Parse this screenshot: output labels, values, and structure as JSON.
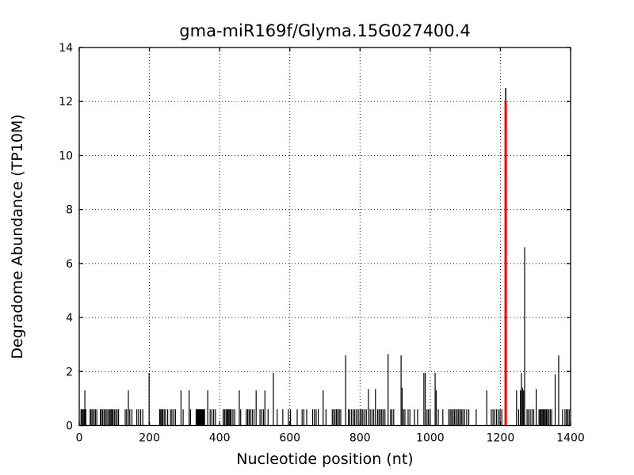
{
  "chart_data": {
    "type": "bar",
    "title": "gma-miR169f/Glyma.15G027400.4",
    "xlabel": "Nucleotide position (nt)",
    "ylabel": "Degradome Abundance (TP10M)",
    "xlim": [
      0,
      1400
    ],
    "ylim": [
      0,
      14
    ],
    "xticks": [
      0,
      200,
      400,
      600,
      800,
      1000,
      1200,
      1400
    ],
    "yticks": [
      0,
      2,
      4,
      6,
      8,
      10,
      12,
      14
    ],
    "grid": "dotted",
    "background_color": "#ffffff",
    "bar_color": "#000000",
    "highlight_color": "#ff0000",
    "highlight": {
      "x": 1215,
      "height": 12.0
    },
    "peak": {
      "x": 1215,
      "height": 12.5
    },
    "spikes": [
      [
        5,
        0.6
      ],
      [
        8,
        0.6
      ],
      [
        11,
        0.6
      ],
      [
        14,
        0.6
      ],
      [
        16,
        1.3
      ],
      [
        19,
        0.6
      ],
      [
        31,
        0.6
      ],
      [
        34,
        0.6
      ],
      [
        38,
        0.6
      ],
      [
        42,
        0.6
      ],
      [
        46,
        0.6
      ],
      [
        50,
        0.6
      ],
      [
        60,
        0.6
      ],
      [
        63,
        0.6
      ],
      [
        67,
        0.6
      ],
      [
        71,
        0.6
      ],
      [
        75,
        0.6
      ],
      [
        79,
        0.6
      ],
      [
        83,
        0.6
      ],
      [
        87,
        0.6
      ],
      [
        90,
        0.6
      ],
      [
        93,
        0.6
      ],
      [
        96,
        0.6
      ],
      [
        100,
        0.6
      ],
      [
        104,
        0.6
      ],
      [
        108,
        0.6
      ],
      [
        112,
        0.6
      ],
      [
        131,
        0.6
      ],
      [
        135,
        0.6
      ],
      [
        140,
        1.3
      ],
      [
        144,
        0.6
      ],
      [
        150,
        0.6
      ],
      [
        164,
        0.6
      ],
      [
        169,
        0.6
      ],
      [
        175,
        0.6
      ],
      [
        181,
        0.6
      ],
      [
        199,
        1.95
      ],
      [
        229,
        0.6
      ],
      [
        232,
        0.6
      ],
      [
        235,
        0.6
      ],
      [
        238,
        0.6
      ],
      [
        242,
        0.6
      ],
      [
        246,
        0.6
      ],
      [
        252,
        0.6
      ],
      [
        260,
        0.6
      ],
      [
        264,
        0.6
      ],
      [
        269,
        0.6
      ],
      [
        274,
        0.6
      ],
      [
        290,
        1.3
      ],
      [
        296,
        0.6
      ],
      [
        313,
        1.3
      ],
      [
        317,
        0.6
      ],
      [
        333,
        0.6
      ],
      [
        335,
        0.6
      ],
      [
        337,
        0.6
      ],
      [
        339,
        0.6
      ],
      [
        341,
        0.6
      ],
      [
        343,
        0.6
      ],
      [
        345,
        0.6
      ],
      [
        347,
        0.6
      ],
      [
        349,
        0.6
      ],
      [
        351,
        0.6
      ],
      [
        353,
        0.6
      ],
      [
        355,
        0.6
      ],
      [
        357,
        0.6
      ],
      [
        366,
        1.3
      ],
      [
        373,
        0.6
      ],
      [
        378,
        0.6
      ],
      [
        383,
        0.6
      ],
      [
        388,
        0.6
      ],
      [
        410,
        0.6
      ],
      [
        414,
        0.6
      ],
      [
        418,
        0.6
      ],
      [
        421,
        0.6
      ],
      [
        424,
        0.6
      ],
      [
        427,
        0.6
      ],
      [
        430,
        0.6
      ],
      [
        433,
        0.6
      ],
      [
        438,
        0.6
      ],
      [
        443,
        0.6
      ],
      [
        456,
        1.3
      ],
      [
        460,
        0.6
      ],
      [
        476,
        0.6
      ],
      [
        480,
        0.6
      ],
      [
        484,
        0.6
      ],
      [
        488,
        0.6
      ],
      [
        493,
        0.6
      ],
      [
        498,
        0.6
      ],
      [
        504,
        1.3
      ],
      [
        515,
        0.6
      ],
      [
        520,
        0.6
      ],
      [
        525,
        0.6
      ],
      [
        529,
        1.3
      ],
      [
        538,
        0.6
      ],
      [
        553,
        1.95
      ],
      [
        564,
        0.6
      ],
      [
        580,
        0.6
      ],
      [
        596,
        0.6
      ],
      [
        602,
        0.6
      ],
      [
        621,
        0.6
      ],
      [
        635,
        0.6
      ],
      [
        640,
        0.6
      ],
      [
        648,
        0.6
      ],
      [
        665,
        0.6
      ],
      [
        670,
        0.6
      ],
      [
        675,
        0.6
      ],
      [
        681,
        0.6
      ],
      [
        695,
        1.3
      ],
      [
        703,
        0.6
      ],
      [
        721,
        0.6
      ],
      [
        725,
        0.6
      ],
      [
        729,
        0.6
      ],
      [
        733,
        0.6
      ],
      [
        737,
        0.6
      ],
      [
        741,
        0.6
      ],
      [
        745,
        0.6
      ],
      [
        759,
        2.6
      ],
      [
        767,
        0.6
      ],
      [
        771,
        0.6
      ],
      [
        776,
        0.6
      ],
      [
        781,
        0.6
      ],
      [
        785,
        0.6
      ],
      [
        790,
        0.6
      ],
      [
        795,
        0.6
      ],
      [
        800,
        0.6
      ],
      [
        804,
        0.6
      ],
      [
        808,
        0.6
      ],
      [
        813,
        0.6
      ],
      [
        818,
        0.6
      ],
      [
        824,
        1.35
      ],
      [
        829,
        0.6
      ],
      [
        834,
        0.6
      ],
      [
        839,
        0.6
      ],
      [
        844,
        1.35
      ],
      [
        850,
        0.6
      ],
      [
        854,
        0.6
      ],
      [
        858,
        0.6
      ],
      [
        862,
        0.6
      ],
      [
        866,
        0.6
      ],
      [
        871,
        0.6
      ],
      [
        880,
        2.65
      ],
      [
        887,
        0.6
      ],
      [
        891,
        0.6
      ],
      [
        896,
        0.6
      ],
      [
        917,
        2.6
      ],
      [
        920,
        1.4
      ],
      [
        924,
        0.6
      ],
      [
        928,
        0.6
      ],
      [
        937,
        0.6
      ],
      [
        942,
        0.6
      ],
      [
        955,
        0.6
      ],
      [
        964,
        0.6
      ],
      [
        982,
        1.95
      ],
      [
        986,
        1.95
      ],
      [
        991,
        0.6
      ],
      [
        995,
        0.6
      ],
      [
        1000,
        0.6
      ],
      [
        1014,
        1.95
      ],
      [
        1017,
        1.3
      ],
      [
        1023,
        0.6
      ],
      [
        1036,
        0.6
      ],
      [
        1053,
        0.6
      ],
      [
        1057,
        0.6
      ],
      [
        1061,
        0.6
      ],
      [
        1065,
        0.6
      ],
      [
        1069,
        0.6
      ],
      [
        1073,
        0.6
      ],
      [
        1077,
        0.6
      ],
      [
        1081,
        0.6
      ],
      [
        1085,
        0.6
      ],
      [
        1089,
        0.6
      ],
      [
        1093,
        0.6
      ],
      [
        1098,
        0.6
      ],
      [
        1104,
        0.6
      ],
      [
        1110,
        0.6
      ],
      [
        1131,
        0.6
      ],
      [
        1161,
        1.3
      ],
      [
        1174,
        0.6
      ],
      [
        1179,
        0.6
      ],
      [
        1184,
        0.6
      ],
      [
        1189,
        0.6
      ],
      [
        1194,
        0.6
      ],
      [
        1199,
        0.6
      ],
      [
        1204,
        0.6
      ],
      [
        1246,
        1.3
      ],
      [
        1252,
        0.6
      ],
      [
        1257,
        1.3
      ],
      [
        1260,
        1.95
      ],
      [
        1263,
        1.4
      ],
      [
        1266,
        1.3
      ],
      [
        1269,
        6.6
      ],
      [
        1276,
        0.6
      ],
      [
        1280,
        0.6
      ],
      [
        1285,
        0.6
      ],
      [
        1290,
        0.6
      ],
      [
        1295,
        0.6
      ],
      [
        1302,
        1.35
      ],
      [
        1310,
        0.6
      ],
      [
        1313,
        0.6
      ],
      [
        1316,
        0.6
      ],
      [
        1319,
        0.6
      ],
      [
        1322,
        0.6
      ],
      [
        1325,
        0.6
      ],
      [
        1328,
        0.6
      ],
      [
        1331,
        0.6
      ],
      [
        1334,
        0.6
      ],
      [
        1338,
        0.6
      ],
      [
        1342,
        0.6
      ],
      [
        1346,
        0.6
      ],
      [
        1356,
        1.9
      ],
      [
        1366,
        2.6
      ],
      [
        1377,
        0.6
      ],
      [
        1384,
        0.6
      ],
      [
        1388,
        0.6
      ],
      [
        1392,
        0.6
      ],
      [
        1396,
        0.6
      ]
    ]
  }
}
